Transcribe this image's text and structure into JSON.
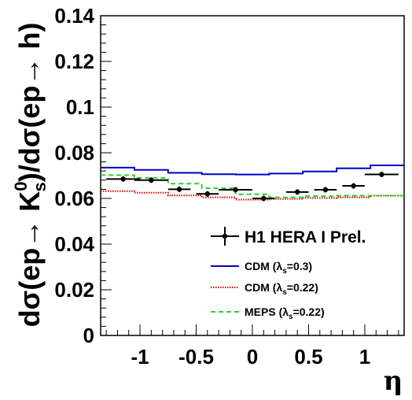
{
  "chart_data": {
    "type": "line",
    "xlabel": "η",
    "ylabel_parts": {
      "prefix": "dσ(ep→ K",
      "sup": "0",
      "sub": "s",
      "suffix": ")/dσ(ep→ h)"
    },
    "xlim": [
      -1.35,
      1.35
    ],
    "ylim": [
      0,
      0.14
    ],
    "x_ticks": [
      -1,
      -0.5,
      0,
      0.5,
      1
    ],
    "x_tick_labels": [
      "-1",
      "-0.5",
      "0",
      "0.5",
      "1"
    ],
    "y_ticks": [
      0,
      0.02,
      0.04,
      0.06,
      0.08,
      0.1,
      0.12,
      0.14
    ],
    "y_tick_labels": [
      "0",
      "0.02",
      "0.04",
      "0.06",
      "0.08",
      "0.1",
      "0.12",
      "0.14"
    ],
    "bin_edges": [
      -1.35,
      -1.05,
      -0.75,
      -0.45,
      -0.15,
      0.15,
      0.45,
      0.75,
      1.05,
      1.35
    ],
    "series": [
      {
        "name": "H1 HERA I Prel.",
        "kind": "points",
        "color": "#000000",
        "x": [
          -1.15,
          -0.9,
          -0.65,
          -0.4,
          -0.15,
          0.1,
          0.4,
          0.65,
          0.9,
          1.15
        ],
        "y": [
          0.0685,
          0.068,
          0.064,
          0.062,
          0.0638,
          0.06,
          0.0628,
          0.0638,
          0.0655,
          0.0705
        ],
        "xerr": [
          0.15,
          0.15,
          0.1,
          0.1,
          0.15,
          0.1,
          0.1,
          0.1,
          0.1,
          0.15
        ],
        "yerr": [
          0.0012,
          0.0012,
          0.0012,
          0.0012,
          0.0012,
          0.0012,
          0.0012,
          0.0012,
          0.0012,
          0.0012
        ]
      },
      {
        "name_parts": {
          "before": "CDM (λ",
          "sub": "s",
          "after": "=0.3)"
        },
        "kind": "histogram",
        "style": "solid",
        "color": "#0000cc",
        "values": [
          0.0735,
          0.0725,
          0.0712,
          0.0706,
          0.0705,
          0.0709,
          0.0718,
          0.0732,
          0.0745
        ]
      },
      {
        "name_parts": {
          "before": "CDM (λ",
          "sub": "s",
          "after": "=0.22)"
        },
        "kind": "histogram",
        "style": "dotted",
        "color": "#dd0000",
        "values": [
          0.0632,
          0.0625,
          0.0613,
          0.0605,
          0.0595,
          0.0598,
          0.0602,
          0.0605,
          0.0612
        ]
      },
      {
        "name_parts": {
          "before": "MEPS (λ",
          "sub": "s",
          "after": "=0.22)"
        },
        "kind": "histogram",
        "style": "dashed",
        "color": "#33cc33",
        "values": [
          0.0702,
          0.069,
          0.0665,
          0.0645,
          0.0618,
          0.0605,
          0.061,
          0.0612,
          0.0612
        ]
      }
    ],
    "legend_position": "lower-right"
  }
}
